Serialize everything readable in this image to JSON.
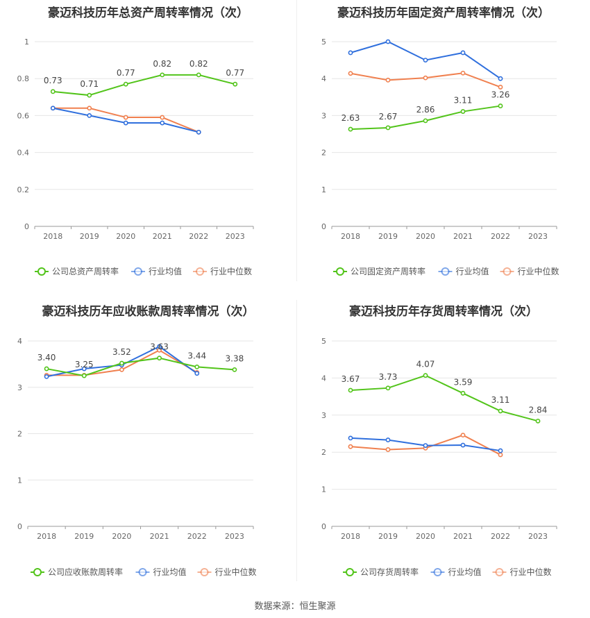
{
  "colors": {
    "company": "#52c41a",
    "avg": "#2f6fdd",
    "median": "#f0804f",
    "grid": "#e6e6e6",
    "axis": "#999999",
    "label": "#444444"
  },
  "footer": "数据来源：恒生聚源",
  "chart_data": [
    {
      "type": "line",
      "title": "豪迈科技历年总资产周转率情况（次）",
      "categories": [
        "2018",
        "2019",
        "2020",
        "2021",
        "2022",
        "2023"
      ],
      "ylim": [
        0,
        1
      ],
      "yticks": [
        "0",
        "0.2",
        "0.4",
        "0.6",
        "0.8",
        "1"
      ],
      "ytick_values": [
        0,
        0.2,
        0.4,
        0.6,
        0.8,
        1
      ],
      "series": [
        {
          "name": "公司总资产周转率",
          "role": "company",
          "values": [
            0.73,
            0.71,
            0.77,
            0.82,
            0.82,
            0.77
          ],
          "labels": [
            "0.73",
            "0.71",
            "0.77",
            "0.82",
            "0.82",
            "0.77"
          ]
        },
        {
          "name": "行业均值",
          "role": "avg",
          "values": [
            0.64,
            0.6,
            0.56,
            0.56,
            0.51,
            null
          ]
        },
        {
          "name": "行业中位数",
          "role": "median",
          "values": [
            0.64,
            0.64,
            0.59,
            0.59,
            0.51,
            null
          ]
        }
      ]
    },
    {
      "type": "line",
      "title": "豪迈科技历年固定资产周转率情况（次）",
      "categories": [
        "2018",
        "2019",
        "2020",
        "2021",
        "2022",
        "2023"
      ],
      "ylim": [
        0,
        5
      ],
      "yticks": [
        "0",
        "1",
        "2",
        "3",
        "4",
        "5"
      ],
      "ytick_values": [
        0,
        1,
        2,
        3,
        4,
        5
      ],
      "series": [
        {
          "name": "公司固定资产周转率",
          "role": "company",
          "values": [
            2.63,
            2.67,
            2.86,
            3.11,
            3.26,
            null
          ],
          "labels": [
            "2.63",
            "2.67",
            "2.86",
            "3.11",
            "3.26",
            null
          ]
        },
        {
          "name": "行业均值",
          "role": "avg",
          "values": [
            4.7,
            5.0,
            4.5,
            4.7,
            4.0,
            null
          ]
        },
        {
          "name": "行业中位数",
          "role": "median",
          "values": [
            4.14,
            3.96,
            4.02,
            4.15,
            3.77,
            null
          ]
        }
      ]
    },
    {
      "type": "line",
      "title": "豪迈科技历年应收账款周转率情况（次）",
      "categories": [
        "2018",
        "2019",
        "2020",
        "2021",
        "2022",
        "2023"
      ],
      "ylim": [
        0,
        4
      ],
      "yticks": [
        "0",
        "1",
        "2",
        "3",
        "4"
      ],
      "ytick_values": [
        0,
        1,
        2,
        3,
        4
      ],
      "series": [
        {
          "name": "公司应收账款周转率",
          "role": "company",
          "values": [
            3.4,
            3.25,
            3.52,
            3.63,
            3.44,
            3.38
          ],
          "labels": [
            "3.40",
            "3.25",
            "3.52",
            "3.63",
            "3.44",
            "3.38"
          ]
        },
        {
          "name": "行业均值",
          "role": "avg",
          "values": [
            3.23,
            3.4,
            3.48,
            3.88,
            3.3,
            null
          ]
        },
        {
          "name": "行业中位数",
          "role": "median",
          "values": [
            3.26,
            3.26,
            3.38,
            3.8,
            3.32,
            null
          ]
        }
      ]
    },
    {
      "type": "line",
      "title": "豪迈科技历年存货周转率情况（次）",
      "categories": [
        "2018",
        "2019",
        "2020",
        "2021",
        "2022",
        "2023"
      ],
      "ylim": [
        0,
        5
      ],
      "yticks": [
        "0",
        "1",
        "2",
        "3",
        "4",
        "5"
      ],
      "ytick_values": [
        0,
        1,
        2,
        3,
        4,
        5
      ],
      "series": [
        {
          "name": "公司存货周转率",
          "role": "company",
          "values": [
            3.67,
            3.73,
            4.07,
            3.59,
            3.11,
            2.84
          ],
          "labels": [
            "3.67",
            "3.73",
            "4.07",
            "3.59",
            "3.11",
            "2.84"
          ]
        },
        {
          "name": "行业均值",
          "role": "avg",
          "values": [
            2.38,
            2.33,
            2.18,
            2.19,
            2.04,
            null
          ]
        },
        {
          "name": "行业中位数",
          "role": "median",
          "values": [
            2.15,
            2.07,
            2.11,
            2.46,
            1.93,
            null
          ]
        }
      ]
    }
  ]
}
